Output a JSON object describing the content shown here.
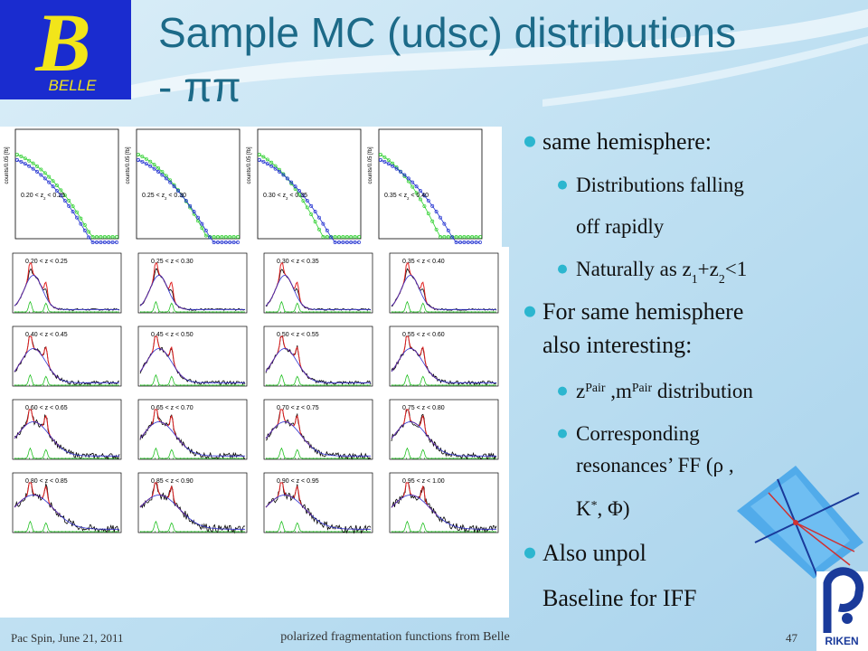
{
  "header": {
    "logo": {
      "letter": "B",
      "name": "BELLE"
    },
    "title_lines": [
      "Sample MC (udsc) distributions",
      "- ππ"
    ]
  },
  "top_plots": {
    "y_label": "counts/0.05 [fb]",
    "panels": [
      [
        {
          "text": "0.20 < z"
        },
        {
          "sub": "2"
        },
        {
          "text": " < 0.25"
        }
      ],
      [
        {
          "text": "0.25 < z"
        },
        {
          "sub": "2"
        },
        {
          "text": " < 0.30"
        }
      ],
      [
        {
          "text": "0.30 < z"
        },
        {
          "sub": "2"
        },
        {
          "text": " < 0.35"
        }
      ],
      [
        {
          "text": "0.35 < z"
        },
        {
          "sub": "2"
        },
        {
          "text": " < 0.40"
        }
      ]
    ]
  },
  "grid_plots": {
    "panels": [
      "0.20 < z < 0.25",
      "0.25 < z < 0.30",
      "0.30 < z < 0.35",
      "0.35 < z < 0.40",
      "0.40 < z < 0.45",
      "0.45 < z < 0.50",
      "0.50 < z < 0.55",
      "0.55 < z < 0.60",
      "0.60 < z < 0.65",
      "0.65 < z < 0.70",
      "0.70 < z < 0.75",
      "0.75 < z < 0.80",
      "0.80 < z < 0.85",
      "0.85 < z < 0.90",
      "0.90 < z < 0.95",
      "0.95 < z < 1.00"
    ]
  },
  "bullets": [
    {
      "level": 1,
      "lines": [
        [
          {
            "text": " same hemisphere:"
          }
        ]
      ]
    },
    {
      "level": 2,
      "lines": [
        [
          {
            "text": "Distributions falling"
          }
        ],
        [
          {
            "text": "off rapidly"
          }
        ]
      ]
    },
    {
      "level": 2,
      "lines": [
        [
          {
            "text": "Naturally  as z"
          },
          {
            "sub": "1"
          },
          {
            "text": "+z"
          },
          {
            "sub": "2"
          },
          {
            "text": "<1"
          }
        ]
      ]
    },
    {
      "level": 1,
      "lines": [
        [
          {
            "text": "For same hemisphere"
          }
        ],
        [
          {
            "text": "also interesting:"
          }
        ]
      ]
    },
    {
      "level": 2,
      "lines": [
        [
          {
            "text": "z"
          },
          {
            "sup": "Pair"
          },
          {
            "text": " ,m"
          },
          {
            "sup": "Pair"
          },
          {
            "text": " distribution"
          }
        ]
      ]
    },
    {
      "level": 2,
      "lines": [
        [
          {
            "text": "Corresponding"
          }
        ],
        [
          {
            "text": "resonances’ FF (ρ ,"
          }
        ],
        [
          {
            "text": "K"
          },
          {
            "sup": "*"
          },
          {
            "text": ", Φ)"
          }
        ]
      ]
    },
    {
      "level": 1,
      "lines": [
        [
          {
            "text": "Also unpol"
          }
        ],
        [
          {
            "text": "Baseline  for IFF"
          }
        ]
      ]
    }
  ],
  "footer": {
    "left": "Pac Spin, June 21, 2011",
    "center": "polarized fragmentation functions from Belle",
    "page": "47",
    "institute": "RIKEN"
  }
}
